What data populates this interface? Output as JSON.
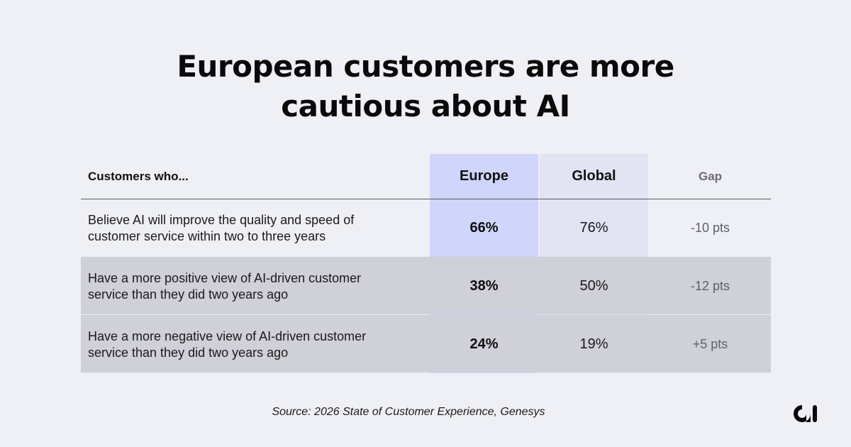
{
  "title_line1": "European customers are more",
  "title_line2": "cautious about AI",
  "chart_data": {
    "type": "table",
    "columns": [
      "Customers who...",
      "Europe",
      "Global",
      "Gap"
    ],
    "rows": [
      {
        "label_line1": "Believe AI will improve the quality and speed of",
        "label_line2": "customer service within two to three years",
        "europe": "66%",
        "global": "76%",
        "gap": "-10 pts"
      },
      {
        "label_line1": "Have a more positive view of AI-driven customer",
        "label_line2": "service than they did two years ago",
        "europe": "38%",
        "global": "50%",
        "gap": "-12 pts"
      },
      {
        "label_line1": "Have a more negative view of AI-driven customer",
        "label_line2": "service than they did two years ago",
        "europe": "24%",
        "global": "19%",
        "gap": "+5 pts"
      }
    ],
    "colors": {
      "europe_column": "#cfd5fb",
      "global_column": "#e2e3f3",
      "background": "#eff0f5"
    }
  },
  "source": "Source: 2026 State of Customer Experience, Genesys",
  "logo_icon": "genesys-logo-icon"
}
